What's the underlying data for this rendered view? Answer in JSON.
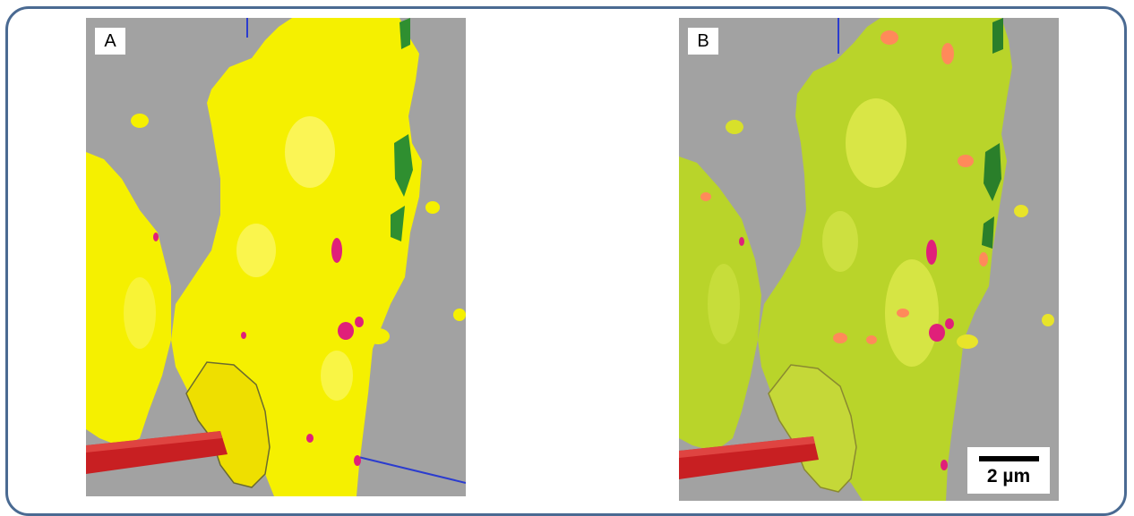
{
  "figure": {
    "panels": [
      {
        "label": "A",
        "rendering": "yellow-surface"
      },
      {
        "label": "B",
        "rendering": "green-yellow-merged-surface"
      }
    ],
    "scale_bar": {
      "text": "2 µm"
    }
  },
  "colors": {
    "frame_border": "#4a6a92",
    "background": "#a2a2a2",
    "surface_a": "#f5f000",
    "surface_b": "#b9d42a",
    "tube": "#c81f22",
    "puncta": "#e0207a",
    "axis": "#2b3ccf"
  }
}
